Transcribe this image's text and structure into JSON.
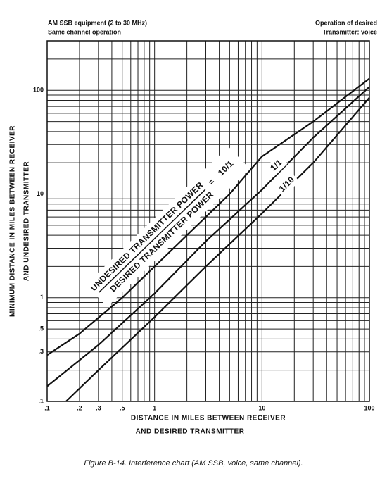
{
  "chart_data": {
    "type": "line",
    "header_left": [
      "AM SSB equipment (2 to 30 MHz)",
      "Same channel operation"
    ],
    "header_right": [
      "Operation of desired",
      "Transmitter: voice"
    ],
    "xlabel": [
      "DISTANCE IN MILES BETWEEN RECEIVER",
      "AND DESIRED TRANSMITTER"
    ],
    "ylabel": [
      "MINIMUM DISTANCE IN MILES BETWEEN RECEIVER",
      "AND UNDESIRED TRANSMITTER"
    ],
    "caption": "Figure B-14. Interference chart (AM SSB, voice, same channel).",
    "annotations": [
      "UNDESIRED TRANSMITTER POWER",
      "DESIRED TRANSMITTER POWER",
      "="
    ],
    "log_x": true,
    "log_y": true,
    "grid": true,
    "xlim": [
      0.1,
      100
    ],
    "ylim": [
      0.1,
      300
    ],
    "xticks": [
      {
        "value": 0.1,
        "label": ".1"
      },
      {
        "value": 0.2,
        "label": ".2"
      },
      {
        "value": 0.3,
        "label": ".3"
      },
      {
        "value": 0.5,
        "label": ".5"
      },
      1,
      10,
      100
    ],
    "yticks": [
      {
        "value": 0.1,
        "label": ".1"
      },
      {
        "value": 0.3,
        "label": ".3"
      },
      {
        "value": 0.5,
        "label": ".5"
      },
      1,
      10,
      100
    ],
    "xgrid": [
      0.1,
      0.2,
      0.3,
      0.4,
      0.5,
      0.6,
      0.7,
      0.8,
      0.9,
      1,
      2,
      3,
      4,
      5,
      6,
      7,
      8,
      9,
      10,
      20,
      30,
      40,
      50,
      60,
      70,
      80,
      90,
      100
    ],
    "ygrid": [
      0.1,
      0.2,
      0.3,
      0.4,
      0.5,
      0.6,
      0.7,
      0.8,
      0.9,
      1,
      2,
      3,
      4,
      5,
      6,
      7,
      8,
      9,
      10,
      20,
      30,
      40,
      50,
      60,
      70,
      80,
      90,
      100,
      200,
      300
    ],
    "series": [
      {
        "name": "10/1",
        "color": "#111111",
        "x": [
          0.1,
          0.2,
          0.5,
          1,
          2,
          5,
          10,
          30,
          100
        ],
        "values": [
          0.28,
          0.45,
          1.0,
          2.0,
          4,
          10,
          23,
          50,
          130
        ]
      },
      {
        "name": "1/1",
        "color": "#111111",
        "x": [
          0.1,
          0.3,
          1,
          3,
          10,
          30,
          100
        ],
        "values": [
          0.14,
          0.35,
          1.1,
          3.5,
          11,
          35,
          108
        ]
      },
      {
        "name": "1/10",
        "color": "#111111",
        "x": [
          0.15,
          0.3,
          1,
          3,
          10,
          30,
          100
        ],
        "values": [
          0.1,
          0.2,
          0.65,
          2,
          6.5,
          20,
          85
        ]
      }
    ]
  }
}
